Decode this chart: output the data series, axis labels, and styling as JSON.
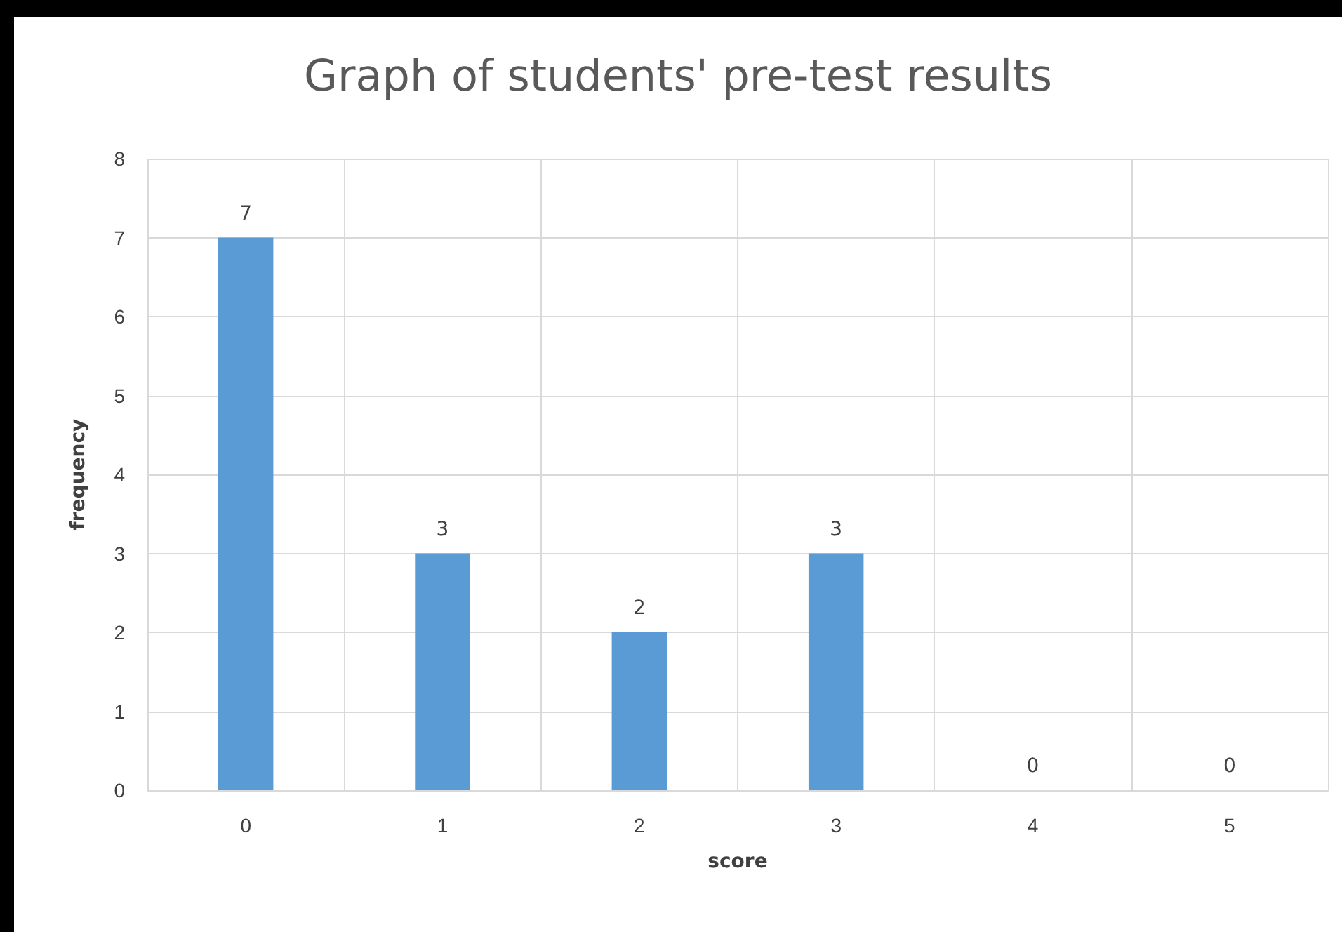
{
  "chart_data": {
    "type": "bar",
    "title": "Graph of students' pre-test results",
    "xlabel": "score",
    "ylabel": "frequency",
    "categories": [
      "0",
      "1",
      "2",
      "3",
      "4",
      "5"
    ],
    "values": [
      7,
      3,
      2,
      3,
      0,
      0
    ],
    "color": "#5b9bd5",
    "ylim": [
      0,
      8
    ],
    "yticks": [
      0,
      1,
      2,
      3,
      4,
      5,
      6,
      7,
      8
    ],
    "grid": true,
    "data_labels": true
  }
}
